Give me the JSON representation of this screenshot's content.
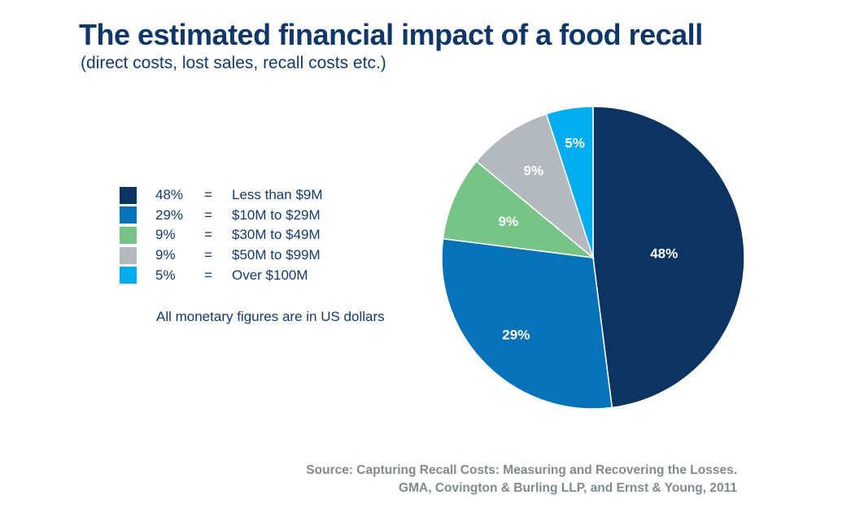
{
  "chart_data": {
    "type": "pie",
    "title": "The estimated financial impact of a food recall",
    "subtitle": "(direct costs, lost sales, recall costs etc.)",
    "start": "top",
    "direction": "clockwise",
    "slices": [
      {
        "label": "Less than $9M",
        "value": 48,
        "value_label": "48%",
        "color": "#0c3362"
      },
      {
        "label": "$10M to $29M",
        "value": 29,
        "value_label": "29%",
        "color": "#0872b9"
      },
      {
        "label": "$30M to $49M",
        "value": 9,
        "value_label": "9%",
        "color": "#76c487"
      },
      {
        "label": "$50M to $99M",
        "value": 9,
        "value_label": "9%",
        "color": "#b3b9bf"
      },
      {
        "label": "Over $100M",
        "value": 5,
        "value_label": "5%",
        "color": "#00aeef"
      }
    ],
    "legend_equals": "=",
    "legend_placement": "left",
    "note": "All monetary figures are in US dollars",
    "source_line1": "Source: Capturing Recall Costs: Measuring and Recovering the Losses.",
    "source_line2": "GMA, Covington & Burling LLP, and Ernst & Young, 2011"
  }
}
